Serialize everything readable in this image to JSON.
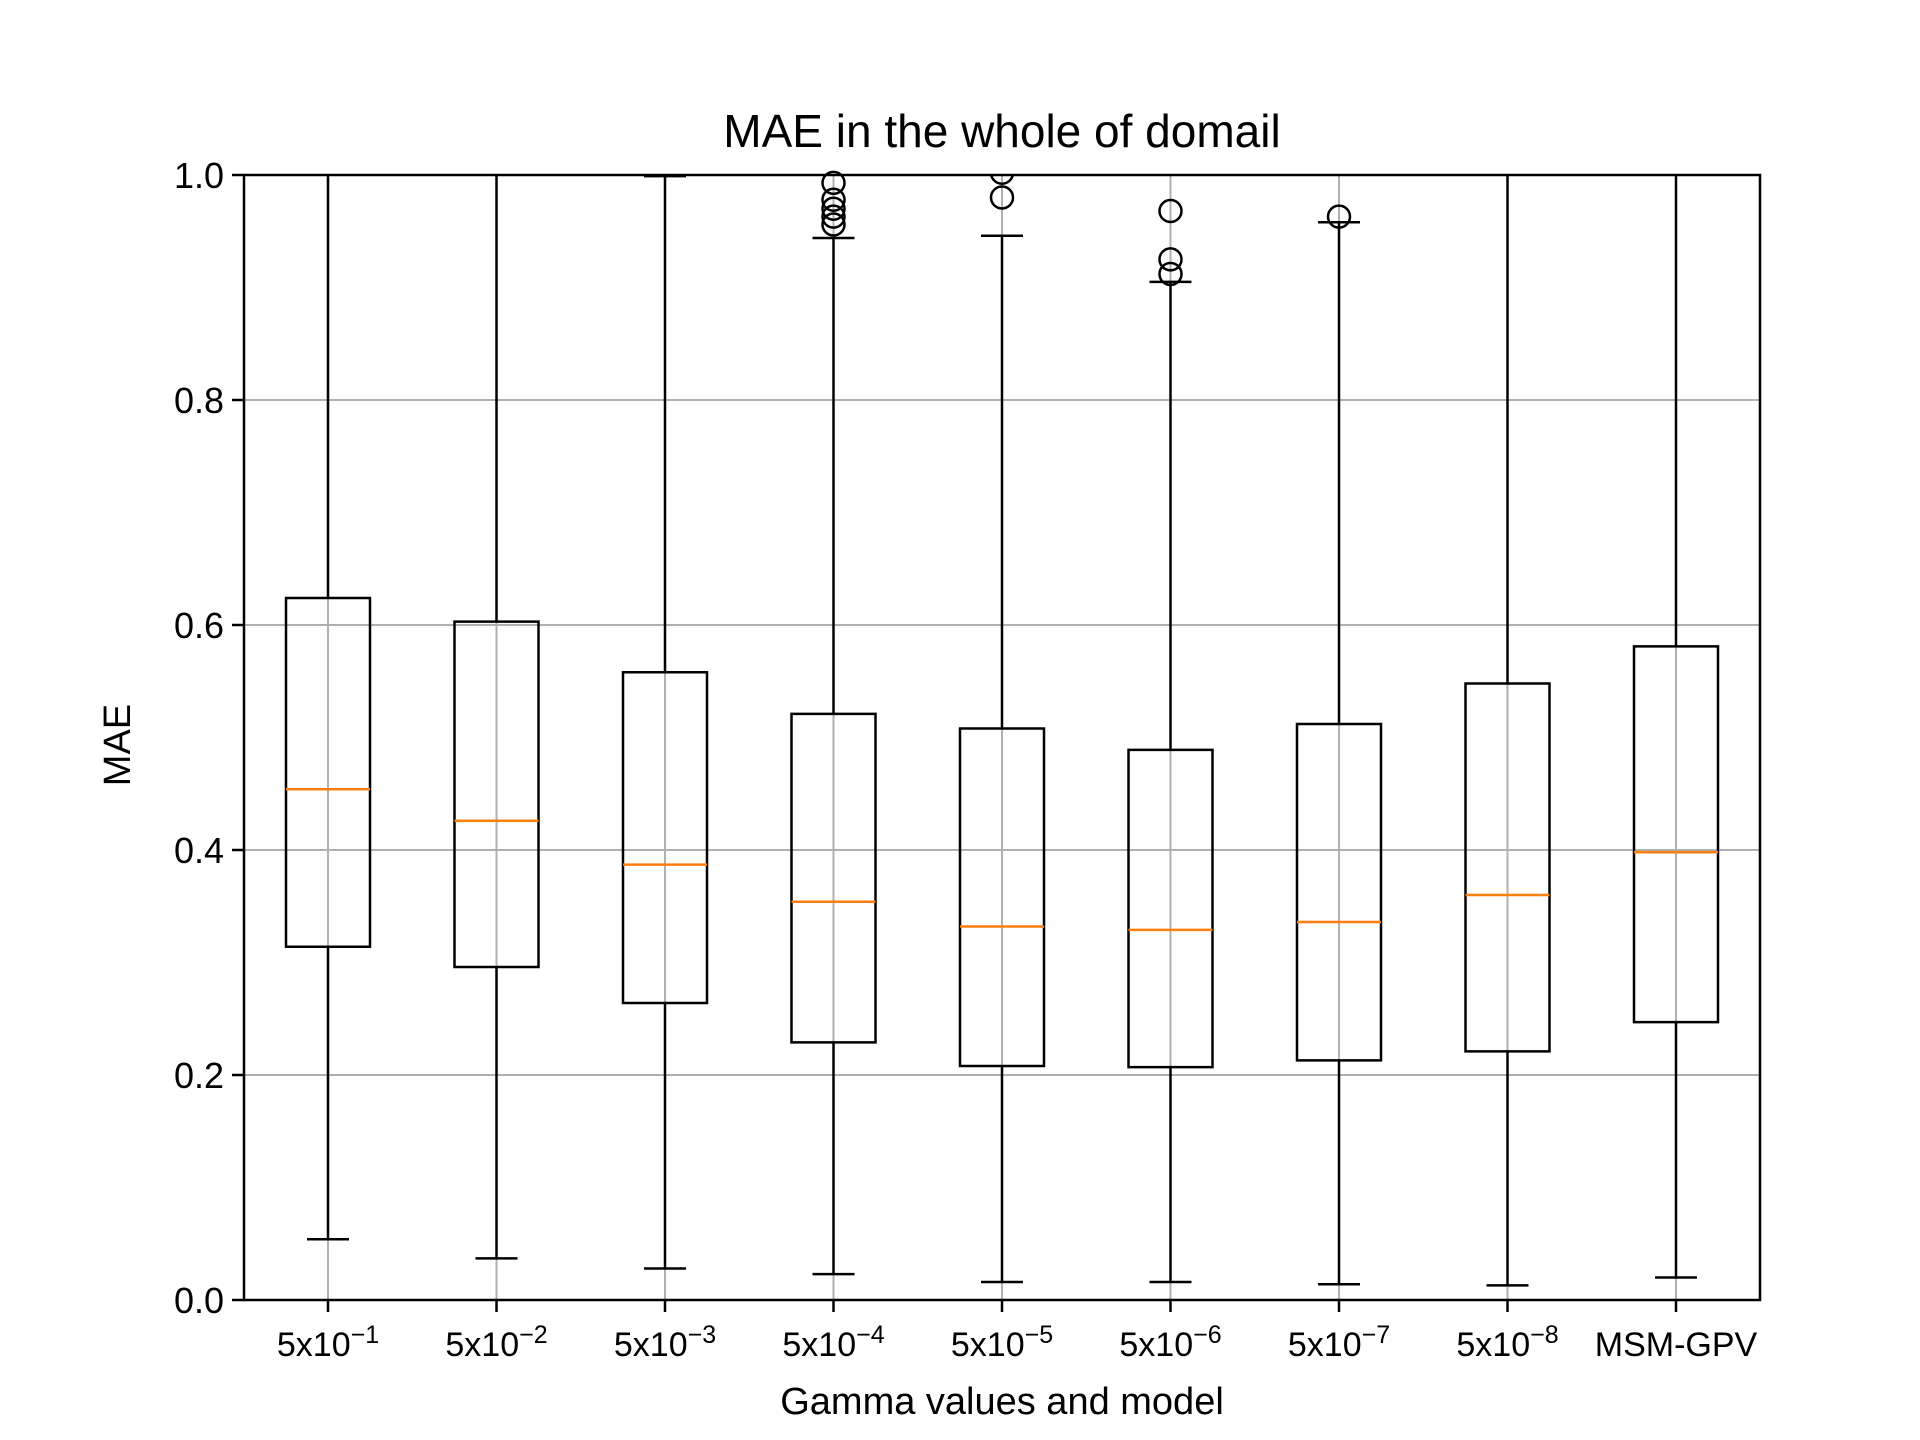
{
  "chart_data": {
    "type": "box",
    "title": "MAE in the whole of domail",
    "xlabel": "Gamma values and model",
    "ylabel": "MAE",
    "ylim": [
      0.0,
      1.0
    ],
    "yticks": [
      "0.0",
      "0.2",
      "0.4",
      "0.6",
      "0.8",
      "1.0"
    ],
    "grid": true,
    "colors": {
      "box": "#000000",
      "median": "#ff7f0e",
      "grid": "#b0b0b0"
    },
    "categories": [
      {
        "base": "5x10",
        "exp": "−1"
      },
      {
        "base": "5x10",
        "exp": "−2"
      },
      {
        "base": "5x10",
        "exp": "−3"
      },
      {
        "base": "5x10",
        "exp": "−4"
      },
      {
        "base": "5x10",
        "exp": "−5"
      },
      {
        "base": "5x10",
        "exp": "−6"
      },
      {
        "base": "5x10",
        "exp": "−7"
      },
      {
        "base": "5x10",
        "exp": "−8"
      },
      {
        "base": "MSM-GPV",
        "exp": ""
      }
    ],
    "boxes": [
      {
        "whisker_low": 0.054,
        "q1": 0.314,
        "median": 0.454,
        "q3": 0.624,
        "whisker_high": 1.04,
        "outliers": []
      },
      {
        "whisker_low": 0.037,
        "q1": 0.296,
        "median": 0.426,
        "q3": 0.603,
        "whisker_high": 1.04,
        "outliers": []
      },
      {
        "whisker_low": 0.028,
        "q1": 0.264,
        "median": 0.387,
        "q3": 0.558,
        "whisker_high": 0.999,
        "outliers": []
      },
      {
        "whisker_low": 0.023,
        "q1": 0.229,
        "median": 0.354,
        "q3": 0.521,
        "whisker_high": 0.944,
        "outliers": [
          0.956,
          0.963,
          0.97,
          0.978,
          0.993
        ]
      },
      {
        "whisker_low": 0.016,
        "q1": 0.208,
        "median": 0.332,
        "q3": 0.508,
        "whisker_high": 0.946,
        "outliers": [
          0.98,
          1.002
        ]
      },
      {
        "whisker_low": 0.016,
        "q1": 0.207,
        "median": 0.329,
        "q3": 0.489,
        "whisker_high": 0.905,
        "outliers": [
          0.912,
          0.925,
          0.968
        ]
      },
      {
        "whisker_low": 0.014,
        "q1": 0.213,
        "median": 0.336,
        "q3": 0.512,
        "whisker_high": 0.958,
        "outliers": [
          0.963
        ]
      },
      {
        "whisker_low": 0.013,
        "q1": 0.221,
        "median": 0.36,
        "q3": 0.548,
        "whisker_high": 1.04,
        "outliers": []
      },
      {
        "whisker_low": 0.02,
        "q1": 0.247,
        "median": 0.398,
        "q3": 0.581,
        "whisker_high": 1.04,
        "outliers": []
      }
    ]
  }
}
